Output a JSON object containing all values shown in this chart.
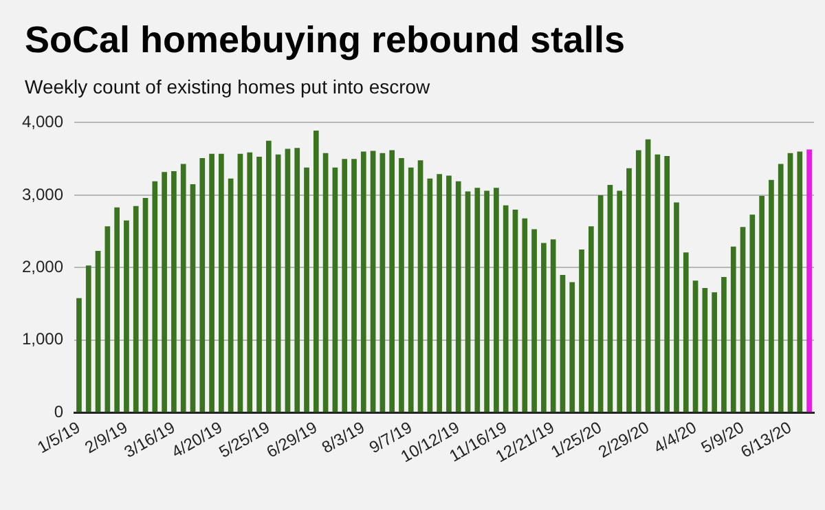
{
  "chart_data": {
    "type": "bar",
    "title": "SoCal homebuying rebound stalls",
    "subtitle": "Weekly count of existing homes put into escrow",
    "categories": [
      "1/5/19",
      null,
      null,
      null,
      null,
      "2/9/19",
      null,
      null,
      null,
      null,
      "3/16/19",
      null,
      null,
      null,
      null,
      "4/20/19",
      null,
      null,
      null,
      null,
      "5/25/19",
      null,
      null,
      null,
      null,
      "6/29/19",
      null,
      null,
      null,
      null,
      "8/3/19",
      null,
      null,
      null,
      null,
      "9/7/19",
      null,
      null,
      null,
      null,
      "10/12/19",
      null,
      null,
      null,
      null,
      "11/16/19",
      null,
      null,
      null,
      null,
      "12/21/19",
      null,
      null,
      null,
      null,
      "1/25/20",
      null,
      null,
      null,
      null,
      "2/29/20",
      null,
      null,
      null,
      null,
      "4/4/20",
      null,
      null,
      null,
      null,
      "5/9/20",
      null,
      null,
      null,
      null,
      "6/13/20",
      null,
      null
    ],
    "values": [
      1580,
      2030,
      2230,
      2570,
      2830,
      2650,
      2850,
      2960,
      3190,
      3320,
      3330,
      3430,
      3150,
      3510,
      3570,
      3570,
      3230,
      3570,
      3590,
      3530,
      3750,
      3560,
      3640,
      3650,
      3380,
      3890,
      3580,
      3380,
      3500,
      3500,
      3600,
      3610,
      3580,
      3620,
      3510,
      3380,
      3480,
      3230,
      3290,
      3270,
      3190,
      3050,
      3100,
      3060,
      3100,
      2860,
      2800,
      2680,
      2530,
      2340,
      2390,
      1900,
      1800,
      2250,
      2570,
      3000,
      3140,
      3060,
      3370,
      3620,
      3770,
      3560,
      3540,
      2900,
      2210,
      1820,
      1720,
      1660,
      1870,
      2290,
      2560,
      2730,
      2990,
      3210,
      3430,
      3580,
      3600,
      3630
    ],
    "colors": [
      "#3b7420",
      "#3b7420",
      "#3b7420",
      "#3b7420",
      "#3b7420",
      "#3b7420",
      "#3b7420",
      "#3b7420",
      "#3b7420",
      "#3b7420",
      "#3b7420",
      "#3b7420",
      "#3b7420",
      "#3b7420",
      "#3b7420",
      "#3b7420",
      "#3b7420",
      "#3b7420",
      "#3b7420",
      "#3b7420",
      "#3b7420",
      "#3b7420",
      "#3b7420",
      "#3b7420",
      "#3b7420",
      "#3b7420",
      "#3b7420",
      "#3b7420",
      "#3b7420",
      "#3b7420",
      "#3b7420",
      "#3b7420",
      "#3b7420",
      "#3b7420",
      "#3b7420",
      "#3b7420",
      "#3b7420",
      "#3b7420",
      "#3b7420",
      "#3b7420",
      "#3b7420",
      "#3b7420",
      "#3b7420",
      "#3b7420",
      "#3b7420",
      "#3b7420",
      "#3b7420",
      "#3b7420",
      "#3b7420",
      "#3b7420",
      "#3b7420",
      "#3b7420",
      "#3b7420",
      "#3b7420",
      "#3b7420",
      "#3b7420",
      "#3b7420",
      "#3b7420",
      "#3b7420",
      "#3b7420",
      "#3b7420",
      "#3b7420",
      "#3b7420",
      "#3b7420",
      "#3b7420",
      "#3b7420",
      "#3b7420",
      "#3b7420",
      "#3b7420",
      "#3b7420",
      "#3b7420",
      "#3b7420",
      "#3b7420",
      "#3b7420",
      "#3b7420",
      "#3b7420",
      "#3b7420",
      "#e41ee4"
    ],
    "ylim": [
      0,
      4000
    ],
    "yticks": [
      {
        "value": 0,
        "label": "0"
      },
      {
        "value": 1000,
        "label": "1,000"
      },
      {
        "value": 2000,
        "label": "2,000"
      },
      {
        "value": 3000,
        "label": "3,000"
      },
      {
        "value": 4000,
        "label": "4,000"
      }
    ],
    "grid": "y",
    "legend": false
  }
}
